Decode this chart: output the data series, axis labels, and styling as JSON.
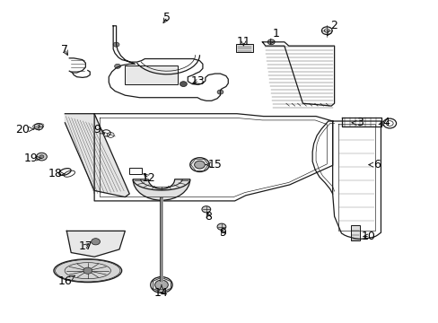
{
  "bg_color": "#ffffff",
  "fig_width": 4.89,
  "fig_height": 3.6,
  "dpi": 100,
  "line_color": "#1a1a1a",
  "font_size": 9,
  "labels": {
    "1": [
      0.63,
      0.895,
      0.615,
      0.862
    ],
    "2": [
      0.76,
      0.92,
      0.745,
      0.888
    ],
    "3": [
      0.82,
      0.62,
      0.8,
      0.62
    ],
    "4": [
      0.88,
      0.62,
      0.862,
      0.615
    ],
    "5": [
      0.38,
      0.945,
      0.368,
      0.92
    ],
    "6": [
      0.86,
      0.49,
      0.838,
      0.49
    ],
    "7": [
      0.148,
      0.845,
      0.158,
      0.82
    ],
    "8": [
      0.475,
      0.33,
      0.472,
      0.352
    ],
    "9a": [
      0.222,
      0.598,
      0.24,
      0.585
    ],
    "9b": [
      0.508,
      0.278,
      0.504,
      0.298
    ],
    "10": [
      0.84,
      0.268,
      0.82,
      0.268
    ],
    "11": [
      0.555,
      0.87,
      0.555,
      0.848
    ],
    "12": [
      0.338,
      0.45,
      0.322,
      0.468
    ],
    "13": [
      0.452,
      0.748,
      0.432,
      0.74
    ],
    "14": [
      0.368,
      0.092,
      0.368,
      0.118
    ],
    "15": [
      0.49,
      0.49,
      0.468,
      0.49
    ],
    "16": [
      0.148,
      0.128,
      0.172,
      0.148
    ],
    "17": [
      0.195,
      0.238,
      0.208,
      0.252
    ],
    "18": [
      0.125,
      0.462,
      0.148,
      0.462
    ],
    "19": [
      0.07,
      0.51,
      0.095,
      0.51
    ],
    "20": [
      0.052,
      0.6,
      0.078,
      0.6
    ]
  }
}
